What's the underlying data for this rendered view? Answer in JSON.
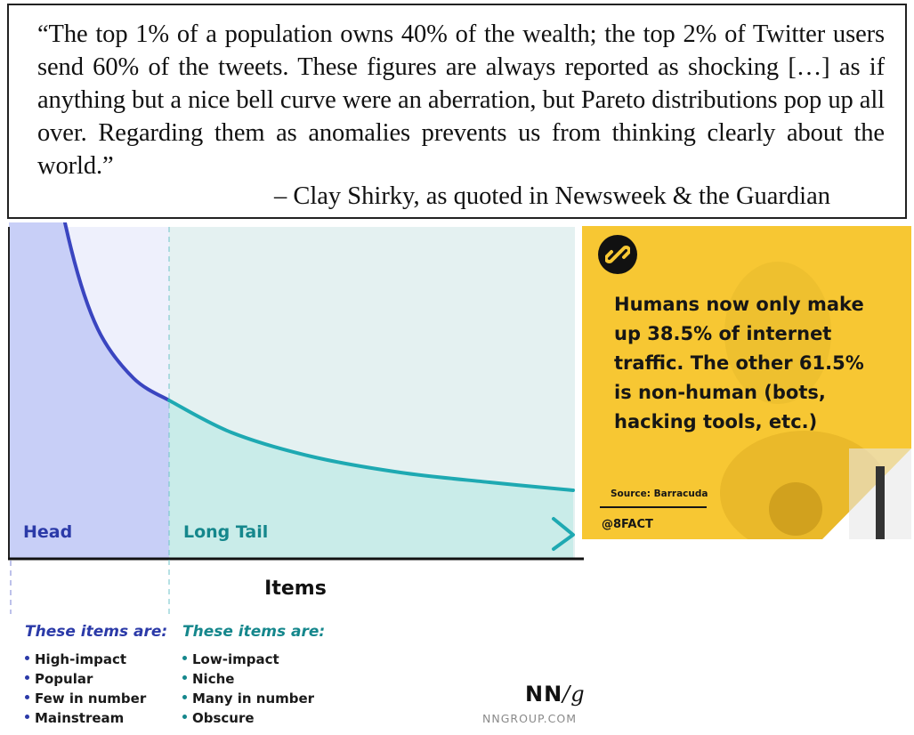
{
  "quote": {
    "text": "“The top 1% of a population owns 40% of the wealth; the top 2% of Twitter users send 60% of the tweets.  These figures are always reported as shocking […] as if anything but a nice bell curve were an aberration, but Pareto distributions pop up all over.  Regarding them as anomalies prevents us from thinking clearly about the world.”",
    "attribution": "– Clay Shirky, as quoted in Newsweek & the Guardian"
  },
  "chart_data": {
    "type": "area",
    "title": "",
    "xlabel": "Items",
    "ylabel": "",
    "regions": [
      {
        "name": "Head",
        "color": "#2b3aa8"
      },
      {
        "name": "Long Tail",
        "color": "#15878c"
      }
    ],
    "curve": "decreasing power-law (Pareto) distribution",
    "colors": {
      "head_fill": "#c8cff7",
      "head_bg": "#eef0fc",
      "tail_fill": "#c9ece9",
      "tail_bg": "#e4f1f1",
      "head_line": "#3a45c0",
      "tail_line": "#1ea9b2"
    }
  },
  "head_items": {
    "title": "These items are:",
    "list": [
      "High-impact",
      "Popular",
      "Few in number",
      "Mainstream"
    ]
  },
  "tail_items": {
    "title": "These items are:",
    "list": [
      "Low-impact",
      "Niche",
      "Many in number",
      "Obscure"
    ]
  },
  "logo": {
    "mark_nn": "NN",
    "mark_slash": "/",
    "mark_g": "g",
    "url": "NNGROUP.COM"
  },
  "fact": {
    "icon": "link-icon",
    "text": "Humans now only make up 38.5% of internet traffic. The other 61.5% is non-human (bots, hacking tools, etc.)",
    "source": "Source: Barracuda",
    "handle": "@8FACT"
  }
}
